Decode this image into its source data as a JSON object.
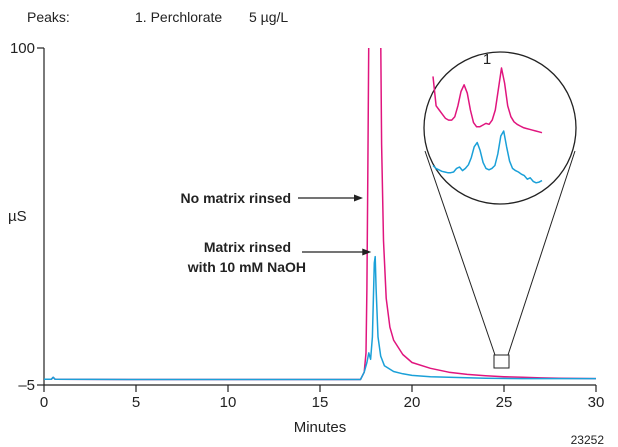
{
  "peaks_header": {
    "label": "Peaks:",
    "entry": "1. Perchlorate",
    "concentration": "5 µg/L"
  },
  "figure_id": "23252",
  "chart_data": {
    "type": "line",
    "xlabel": "Minutes",
    "ylabel": "µS",
    "xlim": [
      0,
      30
    ],
    "ylim": [
      -5,
      100
    ],
    "x_ticks": [
      "0",
      "5",
      "10",
      "15",
      "20",
      "25",
      "30"
    ],
    "y_ticks": [
      "100",
      "–5"
    ],
    "grid": false,
    "legend": "none",
    "series": [
      {
        "name": "No matrix rinsed",
        "color": "#e0157e",
        "points": [
          [
            -0.5,
            -3.2
          ],
          [
            0.4,
            -3.2
          ],
          [
            0.5,
            -2.6
          ],
          [
            0.6,
            -3.2
          ],
          [
            5,
            -3.3
          ],
          [
            10,
            -3.3
          ],
          [
            15,
            -3.3
          ],
          [
            17.2,
            -3.3
          ],
          [
            17.4,
            -1
          ],
          [
            17.5,
            5
          ],
          [
            17.55,
            25
          ],
          [
            17.6,
            60
          ],
          [
            17.65,
            104
          ],
          [
            18.3,
            104
          ],
          [
            18.35,
            70
          ],
          [
            18.45,
            40
          ],
          [
            18.6,
            22
          ],
          [
            18.8,
            13
          ],
          [
            19,
            9
          ],
          [
            19.5,
            4.5
          ],
          [
            20,
            2
          ],
          [
            21,
            0.2
          ],
          [
            22,
            -1
          ],
          [
            23,
            -1.7
          ],
          [
            24,
            -2.1
          ],
          [
            25,
            -2.4
          ],
          [
            26,
            -2.6
          ],
          [
            27,
            -2.8
          ],
          [
            28,
            -2.9
          ],
          [
            30,
            -3
          ]
        ]
      },
      {
        "name": "Matrix rinsed with 10 mM NaOH",
        "color": "#1aa0d8",
        "points": [
          [
            -0.5,
            -3.2
          ],
          [
            0.4,
            -3.2
          ],
          [
            0.5,
            -2.6
          ],
          [
            0.6,
            -3.2
          ],
          [
            5,
            -3.3
          ],
          [
            10,
            -3.3
          ],
          [
            15,
            -3.3
          ],
          [
            17.2,
            -3.3
          ],
          [
            17.4,
            -1
          ],
          [
            17.55,
            2
          ],
          [
            17.65,
            5
          ],
          [
            17.75,
            3
          ],
          [
            17.85,
            10
          ],
          [
            17.95,
            33
          ],
          [
            18.0,
            35
          ],
          [
            18.05,
            25
          ],
          [
            18.15,
            10
          ],
          [
            18.3,
            4
          ],
          [
            18.5,
            1
          ],
          [
            19,
            -0.8
          ],
          [
            19.5,
            -1.5
          ],
          [
            20,
            -2
          ],
          [
            21,
            -2.4
          ],
          [
            22,
            -2.6
          ],
          [
            24,
            -2.9
          ],
          [
            26,
            -3
          ],
          [
            28,
            -3
          ],
          [
            30,
            -3
          ]
        ]
      }
    ],
    "annotations": [
      {
        "lines": [
          "No matrix rinsed"
        ],
        "arrow_to": [
          17.5,
          62
        ]
      },
      {
        "lines": [
          "Matrix rinsed",
          "with 10 mM NaOH"
        ],
        "arrow_to": [
          17.95,
          33
        ]
      }
    ],
    "inset": {
      "peak_label": "1",
      "zoom_region": {
        "x": [
          24.5,
          25.3
        ],
        "y": [
          -3.3,
          -1.3
        ]
      },
      "traces": [
        {
          "color": "#e0157e",
          "values": [
            0.9,
            0.55,
            0.5,
            0.45,
            0.4,
            0.38,
            0.38,
            0.42,
            0.55,
            0.72,
            0.8,
            0.7,
            0.5,
            0.35,
            0.3,
            0.3,
            0.32,
            0.34,
            0.33,
            0.38,
            0.5,
            0.75,
            1.0,
            0.82,
            0.55,
            0.42,
            0.36,
            0.33,
            0.31,
            0.29,
            0.28,
            0.27,
            0.26,
            0.25,
            0.24,
            0.23
          ]
        },
        {
          "color": "#1aa0d8",
          "values": [
            0.34,
            0.3,
            0.28,
            0.26,
            0.25,
            0.24,
            0.24,
            0.25,
            0.3,
            0.32,
            0.27,
            0.3,
            0.35,
            0.45,
            0.6,
            0.66,
            0.55,
            0.38,
            0.3,
            0.28,
            0.3,
            0.34,
            0.5,
            0.75,
            0.82,
            0.6,
            0.4,
            0.3,
            0.27,
            0.25,
            0.22,
            0.2,
            0.15,
            0.17,
            0.12,
            0.1,
            0.11,
            0.13
          ]
        }
      ]
    }
  }
}
